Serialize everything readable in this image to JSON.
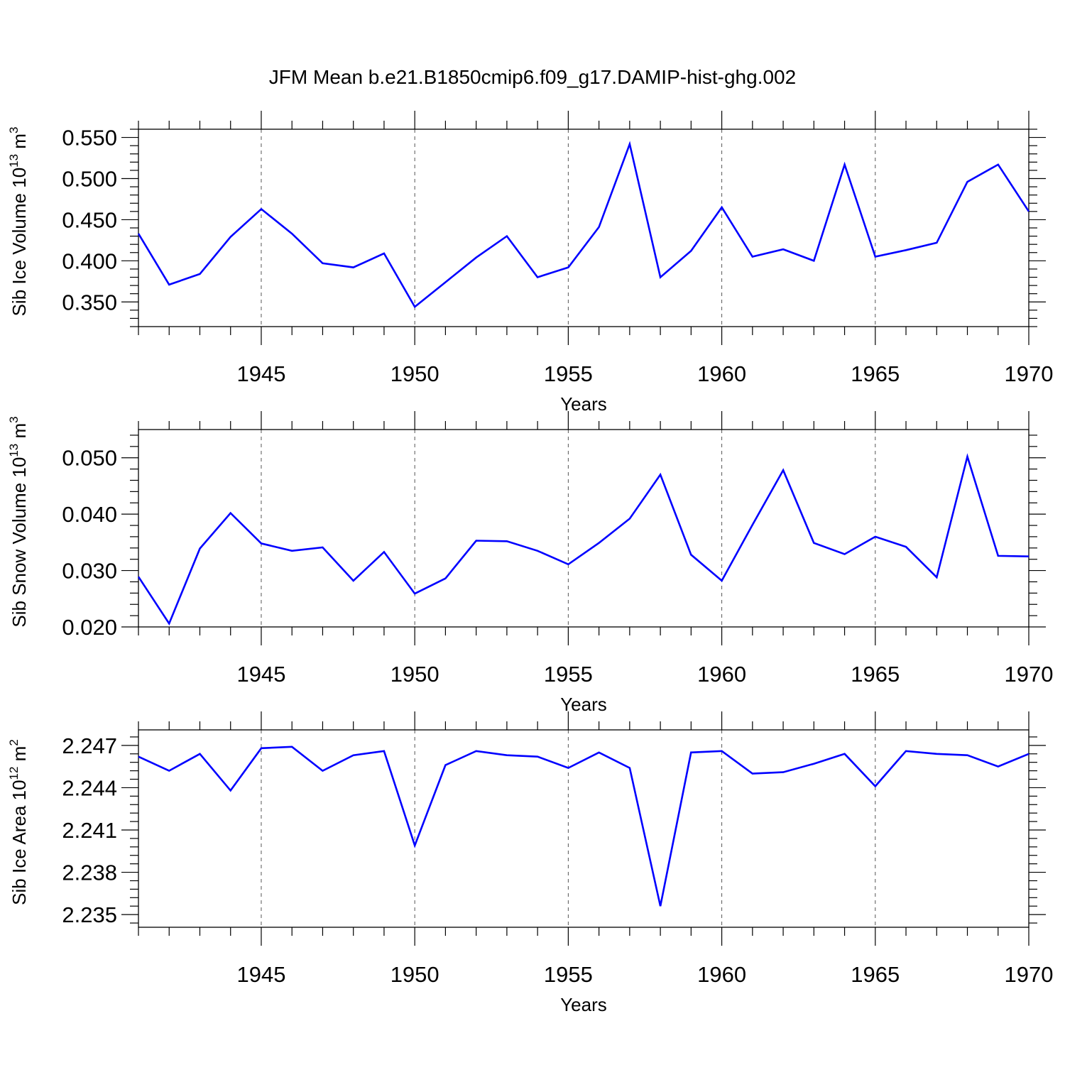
{
  "title": "JFM Mean b.e21.B1850cmip6.f09_g17.DAMIP-hist-ghg.002",
  "colors": {
    "line": "#0000ff",
    "axis": "#000000",
    "grid": "#555555",
    "background": "#ffffff"
  },
  "chart_data": [
    {
      "type": "line",
      "ylabel_main": "Sib Ice Volume 10",
      "ylabel_exp": "13",
      "ylabel_unit": " m",
      "ylabel_unit_exp": "3",
      "xlabel": "Years",
      "xlim": [
        1941,
        1970
      ],
      "ylim": [
        0.32,
        0.56
      ],
      "yticks": [
        0.35,
        0.4,
        0.45,
        0.5,
        0.55
      ],
      "ytick_labels": [
        "0.350",
        "0.400",
        "0.450",
        "0.500",
        "0.550"
      ],
      "xticks": [
        1945,
        1950,
        1955,
        1960,
        1965,
        1970
      ],
      "xtick_labels": [
        "1945",
        "1950",
        "1955",
        "1960",
        "1965",
        "1970"
      ],
      "x": [
        1941,
        1942,
        1943,
        1944,
        1945,
        1946,
        1947,
        1948,
        1949,
        1950,
        1951,
        1952,
        1953,
        1954,
        1955,
        1956,
        1957,
        1958,
        1959,
        1960,
        1961,
        1962,
        1963,
        1964,
        1965,
        1966,
        1967,
        1968,
        1969,
        1970
      ],
      "values": [
        0.433,
        0.371,
        0.384,
        0.429,
        0.463,
        0.433,
        0.397,
        0.392,
        0.409,
        0.344,
        0.374,
        0.404,
        0.43,
        0.38,
        0.392,
        0.441,
        0.542,
        0.38,
        0.412,
        0.465,
        0.405,
        0.414,
        0.4,
        0.517,
        0.405,
        0.413,
        0.422,
        0.496,
        0.517,
        0.46
      ]
    },
    {
      "type": "line",
      "ylabel_main": "Sib Snow Volume 10",
      "ylabel_exp": "13",
      "ylabel_unit": " m",
      "ylabel_unit_exp": "3",
      "xlabel": "Years",
      "xlim": [
        1941,
        1970
      ],
      "ylim": [
        0.02,
        0.055
      ],
      "yticks": [
        0.02,
        0.03,
        0.04,
        0.05
      ],
      "ytick_labels": [
        "0.020",
        "0.030",
        "0.040",
        "0.050"
      ],
      "xticks": [
        1945,
        1950,
        1955,
        1960,
        1965,
        1970
      ],
      "xtick_labels": [
        "1945",
        "1950",
        "1955",
        "1960",
        "1965",
        "1970"
      ],
      "x": [
        1941,
        1942,
        1943,
        1944,
        1945,
        1946,
        1947,
        1948,
        1949,
        1950,
        1951,
        1952,
        1953,
        1954,
        1955,
        1956,
        1957,
        1958,
        1959,
        1960,
        1961,
        1962,
        1963,
        1964,
        1965,
        1966,
        1967,
        1968,
        1969,
        1970
      ],
      "values": [
        0.0289,
        0.0206,
        0.0339,
        0.0402,
        0.0348,
        0.0335,
        0.0341,
        0.0282,
        0.0333,
        0.0259,
        0.0286,
        0.0353,
        0.0352,
        0.0335,
        0.0311,
        0.0349,
        0.0392,
        0.047,
        0.0328,
        0.0282,
        0.0381,
        0.0478,
        0.0349,
        0.0329,
        0.036,
        0.0342,
        0.0288,
        0.0502,
        0.0326,
        0.0325
      ]
    },
    {
      "type": "line",
      "ylabel_main": "Sib Ice Area 10",
      "ylabel_exp": "12",
      "ylabel_unit": " m",
      "ylabel_unit_exp": "2",
      "xlabel": "Years",
      "xlim": [
        1941,
        1970
      ],
      "ylim": [
        2.2341,
        2.2481
      ],
      "yticks": [
        2.235,
        2.238,
        2.241,
        2.244,
        2.247
      ],
      "ytick_labels": [
        "2.235",
        "2.238",
        "2.241",
        "2.244",
        "2.247"
      ],
      "xticks": [
        1945,
        1950,
        1955,
        1960,
        1965,
        1970
      ],
      "xtick_labels": [
        "1945",
        "1950",
        "1955",
        "1960",
        "1965",
        "1970"
      ],
      "x": [
        1941,
        1942,
        1943,
        1944,
        1945,
        1946,
        1947,
        1948,
        1949,
        1950,
        1951,
        1952,
        1953,
        1954,
        1955,
        1956,
        1957,
        1958,
        1959,
        1960,
        1961,
        1962,
        1963,
        1964,
        1965,
        1966,
        1967,
        1968,
        1969,
        1970
      ],
      "values": [
        2.2462,
        2.2452,
        2.2464,
        2.2438,
        2.2468,
        2.2469,
        2.2452,
        2.2463,
        2.2466,
        2.2399,
        2.2456,
        2.2466,
        2.2463,
        2.2462,
        2.2454,
        2.2465,
        2.2454,
        2.2356,
        2.2465,
        2.2466,
        2.245,
        2.2451,
        2.2457,
        2.2464,
        2.2441,
        2.2466,
        2.2464,
        2.2463,
        2.2455,
        2.2464
      ]
    }
  ]
}
